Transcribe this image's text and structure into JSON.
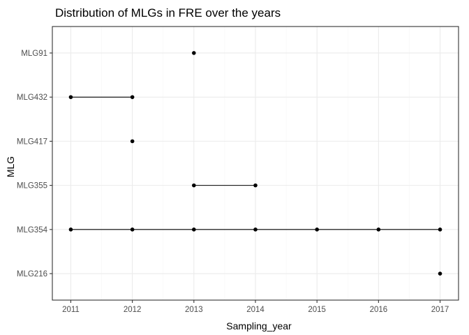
{
  "chart_data": {
    "type": "scatter",
    "title": "Distribution of MLGs in FRE over the years",
    "xlabel": "Sampling_year",
    "ylabel": "MLG",
    "x_ticks": [
      2011,
      2012,
      2013,
      2014,
      2015,
      2016,
      2017
    ],
    "xlim": [
      2010.7,
      2017.3
    ],
    "categories": [
      "MLG216",
      "MLG354",
      "MLG355",
      "MLG417",
      "MLG432",
      "MLG91"
    ],
    "grid": true,
    "series": [
      {
        "mlg": "MLG91",
        "years": [
          2013
        ]
      },
      {
        "mlg": "MLG432",
        "years": [
          2011,
          2012
        ]
      },
      {
        "mlg": "MLG417",
        "years": [
          2012
        ]
      },
      {
        "mlg": "MLG355",
        "years": [
          2013,
          2014
        ]
      },
      {
        "mlg": "MLG354",
        "years": [
          2011,
          2012,
          2013,
          2014,
          2015,
          2016,
          2017
        ]
      },
      {
        "mlg": "MLG216",
        "years": [
          2017
        ]
      }
    ],
    "colors": {
      "points": "#000000",
      "lines": "#000000",
      "grid_major": "#ebebeb",
      "grid_minor": "#f5f5f5",
      "border": "#333333"
    }
  }
}
